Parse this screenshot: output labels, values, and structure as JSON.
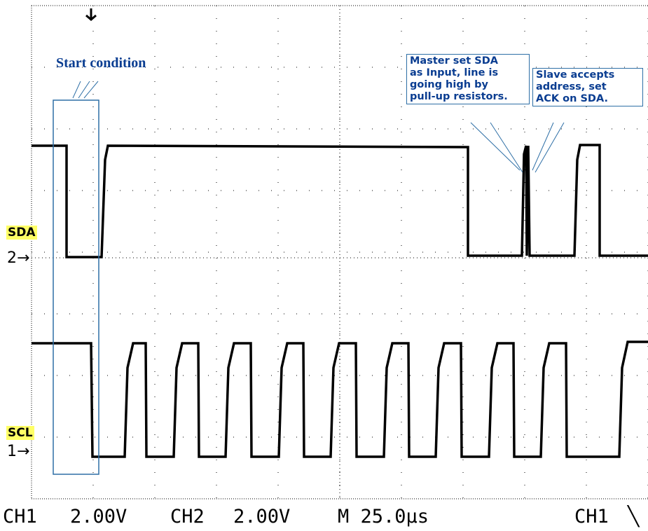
{
  "channels": {
    "sda": {
      "label": "SDA",
      "number_marker": "2→"
    },
    "scl": {
      "label": "SCL",
      "number_marker": "1→"
    }
  },
  "annotations": {
    "start": "Start condition",
    "master": "Master set SDA\nas Input, line is\ngoing high by\npull-up resistors.",
    "slave": "Slave accepts\naddress, set\nACK on SDA."
  },
  "status": {
    "ch1": "CH1",
    "ch1_scale": "2.00V",
    "ch2": "CH2",
    "ch2_scale": "2.00V",
    "timebase": "M 25.0µs",
    "trigger_source": "CH1",
    "trigger_slope": "╲"
  },
  "colors": {
    "annotation_text": "#0a3d91",
    "annotation_border": "#2e6fa6",
    "channel_tag": "#ffff66"
  }
}
